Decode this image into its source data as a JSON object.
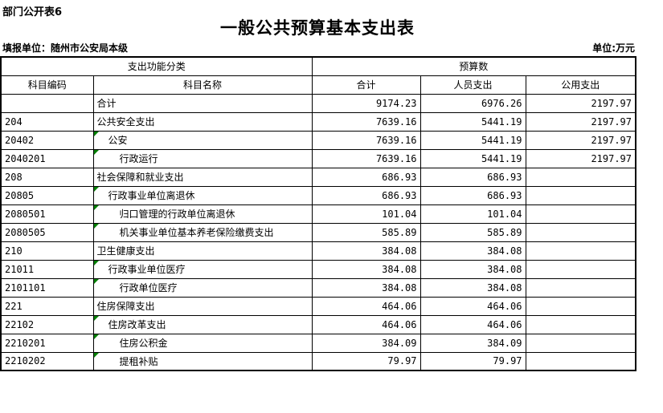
{
  "page": {
    "corner_label": "部门公开表6",
    "title": "一般公共预算基本支出表",
    "reporting_unit_label": "填报单位：随州市公安局本级",
    "unit_label": "单位:万元"
  },
  "table": {
    "marker_color": "#008000",
    "header": {
      "function_group": "支出功能分类",
      "budget_group": "预算数",
      "code": "科目编码",
      "name": "科目名称",
      "total": "合计",
      "personnel": "人员支出",
      "public": "公用支出"
    },
    "rows": [
      {
        "code": "",
        "name": "合计",
        "indent": 0,
        "marker": false,
        "total": "9174.23",
        "personnel": "6976.26",
        "public": "2197.97"
      },
      {
        "code": "204",
        "name": "公共安全支出",
        "indent": 0,
        "marker": false,
        "total": "7639.16",
        "personnel": "5441.19",
        "public": "2197.97"
      },
      {
        "code": "20402",
        "name": "公安",
        "indent": 1,
        "marker": true,
        "total": "7639.16",
        "personnel": "5441.19",
        "public": "2197.97"
      },
      {
        "code": "2040201",
        "name": "行政运行",
        "indent": 2,
        "marker": true,
        "total": "7639.16",
        "personnel": "5441.19",
        "public": "2197.97"
      },
      {
        "code": "208",
        "name": "社会保障和就业支出",
        "indent": 0,
        "marker": false,
        "total": "686.93",
        "personnel": "686.93",
        "public": ""
      },
      {
        "code": "20805",
        "name": "行政事业单位离退休",
        "indent": 1,
        "marker": true,
        "total": "686.93",
        "personnel": "686.93",
        "public": ""
      },
      {
        "code": "2080501",
        "name": "归口管理的行政单位离退休",
        "indent": 2,
        "marker": true,
        "total": "101.04",
        "personnel": "101.04",
        "public": ""
      },
      {
        "code": "2080505",
        "name": "机关事业单位基本养老保险缴费支出",
        "indent": 2,
        "marker": true,
        "total": "585.89",
        "personnel": "585.89",
        "public": ""
      },
      {
        "code": "210",
        "name": "卫生健康支出",
        "indent": 0,
        "marker": false,
        "total": "384.08",
        "personnel": "384.08",
        "public": ""
      },
      {
        "code": "21011",
        "name": "行政事业单位医疗",
        "indent": 1,
        "marker": true,
        "total": "384.08",
        "personnel": "384.08",
        "public": ""
      },
      {
        "code": "2101101",
        "name": "行政单位医疗",
        "indent": 2,
        "marker": true,
        "total": "384.08",
        "personnel": "384.08",
        "public": ""
      },
      {
        "code": "221",
        "name": "住房保障支出",
        "indent": 0,
        "marker": false,
        "total": "464.06",
        "personnel": "464.06",
        "public": ""
      },
      {
        "code": "22102",
        "name": "住房改革支出",
        "indent": 1,
        "marker": true,
        "total": "464.06",
        "personnel": "464.06",
        "public": ""
      },
      {
        "code": "2210201",
        "name": "住房公积金",
        "indent": 2,
        "marker": true,
        "total": "384.09",
        "personnel": "384.09",
        "public": ""
      },
      {
        "code": "2210202",
        "name": "提租补贴",
        "indent": 2,
        "marker": true,
        "total": "79.97",
        "personnel": "79.97",
        "public": ""
      }
    ]
  }
}
